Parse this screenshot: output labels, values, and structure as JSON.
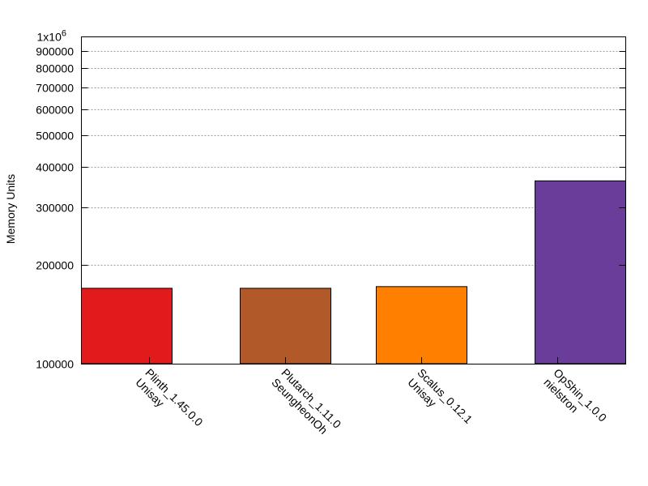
{
  "chart_data": {
    "type": "bar",
    "title": "",
    "xlabel": "",
    "ylabel": "Memory Units",
    "yscale": "log",
    "ylim": [
      100000,
      1000000
    ],
    "grid": "horizontal dotted",
    "legend": "none",
    "y_ticks": [
      {
        "value": 100000,
        "label": "100000"
      },
      {
        "value": 200000,
        "label": "200000"
      },
      {
        "value": 300000,
        "label": "300000"
      },
      {
        "value": 400000,
        "label": "400000"
      },
      {
        "value": 500000,
        "label": "500000"
      },
      {
        "value": 600000,
        "label": "600000"
      },
      {
        "value": 700000,
        "label": "700000"
      },
      {
        "value": 800000,
        "label": "800000"
      },
      {
        "value": 900000,
        "label": "900000"
      },
      {
        "value": 1000000,
        "label": "1x10",
        "sup": "6"
      }
    ],
    "categories": [
      "Plinth_1.45.0.0 Unisay",
      "Plutarch_1.11.0 SeungheonOh",
      "Scalus_0.12.1 Unisay",
      "OpShin_1.0.0 nielstron"
    ],
    "bars": [
      {
        "line1": "Plinth_1.45.0.0",
        "line2": "Unisay",
        "value": 170000,
        "color": "#e31a1c"
      },
      {
        "line1": "Plutarch_1.11.0",
        "line2": "SeungheonOh",
        "value": 170000,
        "color": "#b15928"
      },
      {
        "line1": "Scalus_0.12.1",
        "line2": "Unisay",
        "value": 172000,
        "color": "#ff7f00"
      },
      {
        "line1": "OpShin_1.0.0",
        "line2": "nielstron",
        "value": 362000,
        "color": "#6a3d9a"
      }
    ],
    "values": [
      170000,
      170000,
      172000,
      362000
    ]
  }
}
